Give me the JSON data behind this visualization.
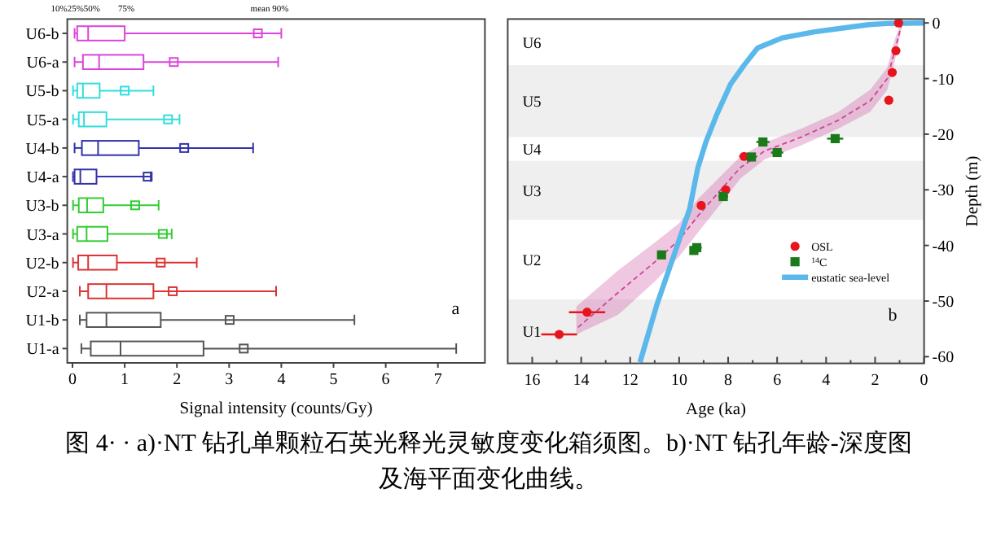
{
  "chart_data": [
    {
      "type": "box",
      "orientation": "horizontal",
      "xlabel": "Signal intensity (counts/Gy)",
      "xlim": [
        -0.1,
        7.9
      ],
      "xticks": [
        0,
        1,
        2,
        3,
        4,
        5,
        6,
        7
      ],
      "categories": [
        "U6-b",
        "U6-a",
        "U5-b",
        "U5-a",
        "U4-b",
        "U4-a",
        "U3-b",
        "U3-a",
        "U2-b",
        "U2-a",
        "U1-b",
        "U1-a"
      ],
      "colors": [
        "#dd44dd",
        "#dd44dd",
        "#33dddd",
        "#33dddd",
        "#3333aa",
        "#3333aa",
        "#33cc33",
        "#33cc33",
        "#dd3333",
        "#dd3333",
        "#555555",
        "#555555"
      ],
      "boxes": [
        {
          "low": 0.04,
          "q1": 0.09,
          "median": 0.3,
          "q3": 1.0,
          "high": 4.0,
          "mean": 3.55
        },
        {
          "low": 0.04,
          "q1": 0.2,
          "median": 0.51,
          "q3": 1.36,
          "high": 3.94,
          "mean": 1.94
        },
        {
          "low": 0.01,
          "q1": 0.09,
          "median": 0.2,
          "q3": 0.52,
          "high": 1.55,
          "mean": 1.0
        },
        {
          "low": 0.01,
          "q1": 0.12,
          "median": 0.22,
          "q3": 0.65,
          "high": 2.05,
          "mean": 1.83
        },
        {
          "low": 0.04,
          "q1": 0.18,
          "median": 0.49,
          "q3": 1.27,
          "high": 3.46,
          "mean": 2.14
        },
        {
          "low": 0.01,
          "q1": 0.04,
          "median": 0.15,
          "q3": 0.46,
          "high": 1.5,
          "mean": 1.44
        },
        {
          "low": 0.01,
          "q1": 0.12,
          "median": 0.28,
          "q3": 0.59,
          "high": 1.65,
          "mean": 1.2
        },
        {
          "low": 0.01,
          "q1": 0.09,
          "median": 0.27,
          "q3": 0.67,
          "high": 1.9,
          "mean": 1.73
        },
        {
          "low": 0.01,
          "q1": 0.11,
          "median": 0.3,
          "q3": 0.85,
          "high": 2.38,
          "mean": 1.69
        },
        {
          "low": 0.14,
          "q1": 0.3,
          "median": 0.65,
          "q3": 1.55,
          "high": 3.9,
          "mean": 1.92
        },
        {
          "low": 0.14,
          "q1": 0.27,
          "median": 0.65,
          "q3": 1.69,
          "high": 5.4,
          "mean": 3.01
        },
        {
          "low": 0.17,
          "q1": 0.35,
          "median": 0.92,
          "q3": 2.51,
          "high": 7.35,
          "mean": 3.28
        }
      ],
      "annotations": [
        "10%25%50%",
        "75%",
        "mean 90%",
        "a"
      ]
    },
    {
      "type": "scatter",
      "xlabel": "Age (ka)",
      "ylabel": "Depth (m)",
      "xlim": [
        17,
        0
      ],
      "ylim": [
        -61.2,
        0.7
      ],
      "xticks": [
        16,
        {
          "value": 15,
          "label": null
        },
        14,
        {
          "value": 13,
          "label": null
        },
        12,
        {
          "value": 11,
          "label": null
        },
        10,
        {
          "value": 9,
          "label": null
        },
        8,
        {
          "value": 7,
          "label": null
        },
        6,
        {
          "value": 5,
          "label": null
        },
        4,
        {
          "value": 3,
          "label": null
        },
        2,
        {
          "value": 1,
          "label": null
        },
        0
      ],
      "yticks": [
        0,
        -10,
        -20,
        -30,
        -40,
        -50,
        -60
      ],
      "bands": [
        {
          "axis": "y",
          "from": -7.6,
          "to": -20.5,
          "label": "U5",
          "color": "#efefef"
        },
        {
          "axis": "y",
          "from": -24.8,
          "to": -35.4,
          "label": "U3",
          "color": "#efefef"
        },
        {
          "axis": "y",
          "from": -49.7,
          "to": -61.2,
          "label": "U1",
          "color": "#efefef"
        }
      ],
      "series": [
        {
          "type": "line",
          "color": "#cc4499",
          "line_style": "dashed",
          "marker": "none",
          "x": [
            0.9,
            1.2,
            1.5,
            2.2,
            3.5,
            5.0,
            6.5,
            7.5,
            8.3,
            9.2,
            10.0,
            11.0,
            12.5,
            14.2
          ],
          "values": [
            0,
            -5,
            -10,
            -14,
            -17.5,
            -20.5,
            -23,
            -26,
            -30,
            -34.5,
            -39,
            -43,
            -48.5,
            -55
          ],
          "lower": [
            -0.5,
            -7,
            -12,
            -16,
            -19,
            -22,
            -24.5,
            -28,
            -32.5,
            -37.5,
            -42,
            -46.5,
            -52.5,
            -56
          ],
          "upper": [
            0.5,
            -3,
            -8,
            -12,
            -16,
            -19,
            -21.5,
            -24,
            -27.5,
            -31.5,
            -36,
            -39.5,
            -44.5,
            -51
          ]
        },
        {
          "type": "line",
          "name": "eustatic sea-level",
          "color": "#5bb8ea",
          "line_style": "solid",
          "marker": "none",
          "x": [
            0,
            1.5,
            2.26,
            4.47,
            5.8,
            6.8,
            7.35,
            7.9,
            8.46,
            8.9,
            9.24,
            9.57,
            10.13,
            10.9,
            11.6
          ],
          "values": [
            0,
            -0.1,
            -0.3,
            -1.6,
            -2.7,
            -4.5,
            -7.6,
            -11,
            -16.4,
            -21.3,
            -26.1,
            -33.4,
            -40.7,
            -50.5,
            -61
          ]
        },
        {
          "type": "scatter",
          "name": "OSL",
          "color": "#e8141c",
          "marker": "circle",
          "x": [
            1.04,
            1.15,
            1.3,
            1.44,
            7.35,
            8.1,
            9.1,
            13.76,
            14.9
          ],
          "values": [
            0,
            -5.0,
            -8.9,
            -13.9,
            -24.0,
            -30.0,
            -32.8,
            -52,
            -56
          ],
          "xerrors": [
            null,
            null,
            null,
            null,
            0.2,
            null,
            null,
            0.74,
            0.73
          ]
        },
        {
          "type": "scatter",
          "name": "$^{14}$C",
          "color": "#1a7a1a",
          "marker": "square",
          "x": [
            6.58,
            3.63,
            6.0,
            7.05,
            8.2,
            9.28,
            9.4,
            10.72
          ],
          "values": [
            -21.4,
            -20.8,
            -23.3,
            -24.1,
            -31.2,
            -40.4,
            -40.9,
            -41.7
          ],
          "xerrors": [
            0.27,
            0.33,
            0.25,
            0.2,
            0.2,
            0.2,
            null,
            null
          ]
        }
      ],
      "legend": "right",
      "annotations": [
        "U6",
        "U4",
        "U2",
        "b"
      ]
    },
    {
      "type": "other",
      "annotations": [
        "图 4· · a)·NT 钻孔单颗粒石英光释光灵敏度变化箱须图。b)·NT 钻孔年龄-深度图及海平面变化曲线。"
      ]
    }
  ]
}
